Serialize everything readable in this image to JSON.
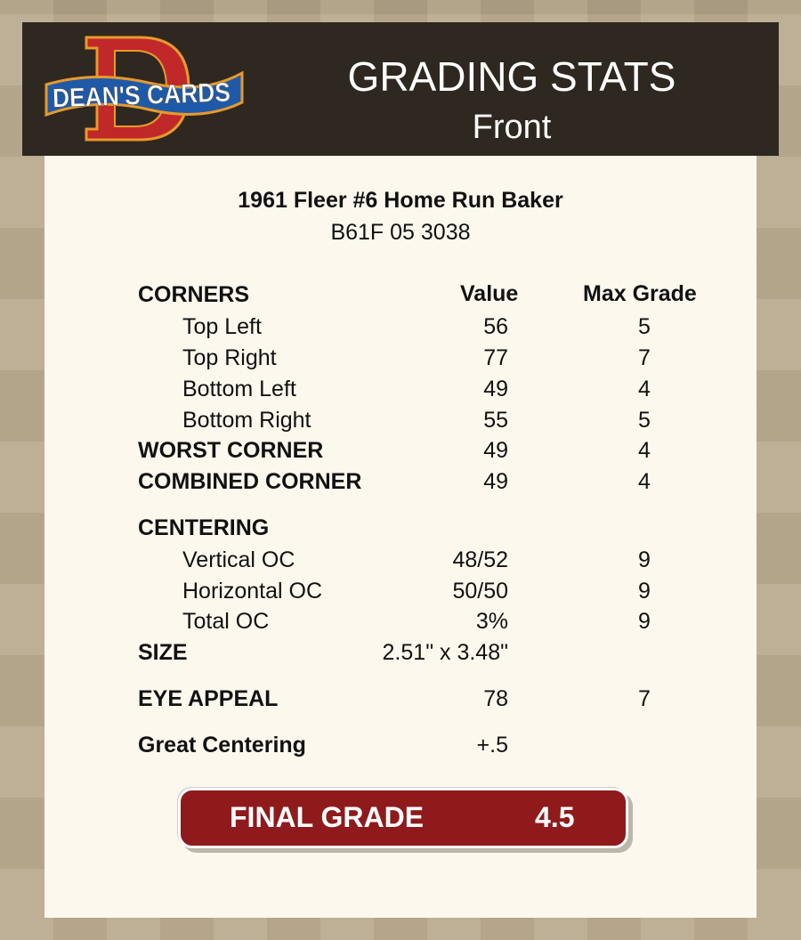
{
  "header": {
    "logo_text": "DEAN'S CARDS",
    "title": "GRADING STATS",
    "subtitle": "Front"
  },
  "card": {
    "name": "1961 Fleer #6 Home Run Baker",
    "cert": "B61F 05 3038"
  },
  "columns": {
    "value": "Value",
    "max_grade": "Max Grade"
  },
  "rows": [
    {
      "label": "CORNERS",
      "value": "",
      "max": "",
      "style": "bold",
      "top": 0
    },
    {
      "label": "Top Left",
      "value": "56",
      "max": "5",
      "style": "sub"
    },
    {
      "label": "Top Right",
      "value": "77",
      "max": "7",
      "style": "sub"
    },
    {
      "label": "Bottom Left",
      "value": "49",
      "max": "4",
      "style": "sub"
    },
    {
      "label": "Bottom Right",
      "value": "55",
      "max": "5",
      "style": "sub"
    },
    {
      "label": "WORST CORNER",
      "value": "49",
      "max": "4",
      "style": "bold"
    },
    {
      "label": "COMBINED CORNER",
      "value": "49",
      "max": "4",
      "style": "bold"
    },
    {
      "label": "CENTERING",
      "value": "",
      "max": "",
      "style": "bold"
    },
    {
      "label": "Vertical OC",
      "value": "48/52",
      "max": "9",
      "style": "sub"
    },
    {
      "label": "Horizontal OC",
      "value": "50/50",
      "max": "9",
      "style": "sub"
    },
    {
      "label": "Total OC",
      "value": "3%",
      "max": "9",
      "style": "sub"
    },
    {
      "label": "SIZE",
      "value": "2.51\" x 3.48\"",
      "max": "",
      "style": "bold"
    },
    {
      "label": "EYE APPEAL",
      "value": "78",
      "max": "7",
      "style": "bold"
    },
    {
      "label": "Great Centering",
      "value": "+.5",
      "max": "",
      "style": "bold"
    }
  ],
  "final": {
    "label": "FINAL GRADE",
    "value": "4.5"
  },
  "colors": {
    "header_bg": "#2f2820",
    "panel_bg": "#fcf8ee",
    "final_bg": "#8f1a1c"
  }
}
